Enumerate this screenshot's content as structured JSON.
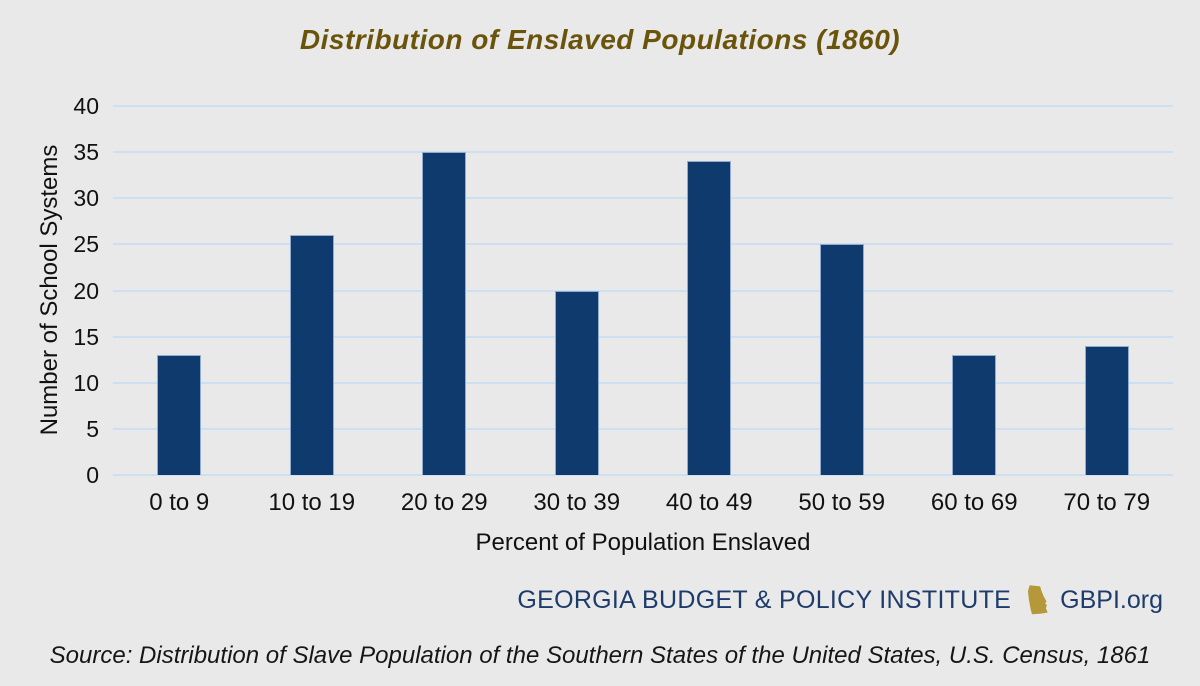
{
  "chart_data": {
    "type": "bar",
    "title": "Distribution of Enslaved Populations (1860)",
    "categories": [
      "0 to 9",
      "10 to 19",
      "20 to 29",
      "30 to 39",
      "40 to 49",
      "50 to 59",
      "60 to 69",
      "70 to 79"
    ],
    "values": [
      13,
      26,
      35,
      20,
      34,
      25,
      13,
      14
    ],
    "xlabel": "Percent of Population Enslaved",
    "ylabel": "Number of School Systems",
    "ylim": [
      0,
      40
    ],
    "ytick_step": 5,
    "grid": true,
    "legend": false
  },
  "footer": {
    "org_name": "GEORGIA BUDGET & POLICY INSTITUTE",
    "site": "GBPI.org"
  },
  "source": "Source: Distribution of Slave Population of the Southern States of the United States, U.S. Census, 1861",
  "colors": {
    "background": "#e9e9ea",
    "bar": "#0f3a6e",
    "bar_edge": "#93abce",
    "gridline": "#cfdff2",
    "title": "#6a540b",
    "axis_text": "#111111",
    "footer_navy": "#1e3c6b",
    "georgia_gold": "#b49839"
  }
}
